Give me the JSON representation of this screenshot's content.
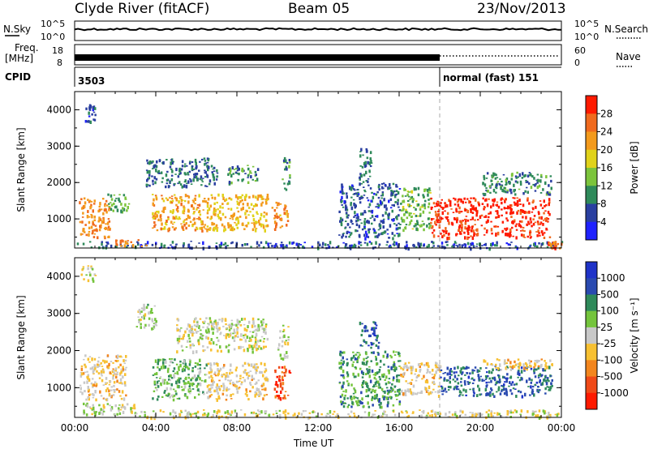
{
  "header": {
    "title": "Clyde River (fitACF)",
    "beam": "Beam 05",
    "date": "23/Nov/2013"
  },
  "top_panels": {
    "nsky_label": "N.Sky",
    "nsearch_label": "N.Search",
    "nsky_ticks": [
      "10^5",
      "10^0"
    ],
    "nsearch_ticks": [
      "10^5",
      "10^0"
    ],
    "freq_label_1": "Freq.",
    "freq_label_2": "[MHz]",
    "freq_ticks": [
      "18",
      "8"
    ],
    "nave_label": "Nave",
    "nave_ticks": [
      "60",
      "0"
    ],
    "cpid_label": "CPID",
    "cpid_values": [
      "3503",
      "normal (fast) 151"
    ],
    "cpid_change_time": "18:00"
  },
  "colors": {
    "power": [
      "#1f22ff",
      "#2a3fa0",
      "#2f8a5a",
      "#7cc43c",
      "#e0d21a",
      "#f39a1c",
      "#f06a1e",
      "#ff1a00"
    ],
    "velocity": [
      "#ff1a00",
      "#f04a18",
      "#f3861e",
      "#f7c032",
      "#c8c8c8",
      "#74c43c",
      "#2f8a5a",
      "#2a4ab0",
      "#1f33c8"
    ]
  },
  "chart_data": [
    {
      "type": "heatmap",
      "name": "power",
      "xlabel": "",
      "ylabel": "Slant Range [km]",
      "x_ticks": [
        "00:00",
        "04:00",
        "08:00",
        "12:00",
        "16:00",
        "20:00",
        "00:00"
      ],
      "y_ticks": [
        1000,
        2000,
        3000,
        4000
      ],
      "ylim": [
        200,
        4500
      ],
      "colorbar": {
        "label": "Power [dB]",
        "ticks": [
          "28",
          "24",
          "20",
          "16",
          "12",
          "8",
          "4"
        ],
        "range": [
          0,
          32
        ]
      },
      "blobs": [
        {
          "t0": 0.2,
          "t1": 1.7,
          "r0": 500,
          "r1": 1600,
          "v": 24
        },
        {
          "t0": 0.5,
          "t1": 1.0,
          "r0": 3700,
          "r1": 4200,
          "v": 6
        },
        {
          "t0": 1.6,
          "t1": 2.7,
          "r0": 1200,
          "r1": 1700,
          "v": 12
        },
        {
          "t0": 3.8,
          "t1": 6.5,
          "r0": 700,
          "r1": 1700,
          "v": 22
        },
        {
          "t0": 3.5,
          "t1": 7.0,
          "r0": 1900,
          "r1": 2700,
          "v": 8
        },
        {
          "t0": 6.5,
          "t1": 9.5,
          "r0": 700,
          "r1": 1700,
          "v": 20
        },
        {
          "t0": 7.5,
          "t1": 9.0,
          "r0": 2000,
          "r1": 2500,
          "v": 10
        },
        {
          "t0": 9.7,
          "t1": 10.5,
          "r0": 700,
          "r1": 1500,
          "v": 23
        },
        {
          "t0": 10.2,
          "t1": 10.6,
          "r0": 1800,
          "r1": 2700,
          "v": 9
        },
        {
          "t0": 13.0,
          "t1": 16.0,
          "r0": 500,
          "r1": 2000,
          "v": 7
        },
        {
          "t0": 14.0,
          "t1": 14.6,
          "r0": 2000,
          "r1": 3000,
          "v": 8
        },
        {
          "t0": 16.0,
          "t1": 17.5,
          "r0": 700,
          "r1": 1900,
          "v": 13
        },
        {
          "t0": 17.5,
          "t1": 23.4,
          "r0": 500,
          "r1": 1600,
          "v": 30
        },
        {
          "t0": 20.0,
          "t1": 23.5,
          "r0": 1700,
          "r1": 2300,
          "v": 10
        },
        {
          "t0": 0.0,
          "t1": 24.0,
          "r0": 220,
          "r1": 400,
          "v": 6
        },
        {
          "t0": 2.0,
          "t1": 3.5,
          "r0": 250,
          "r1": 450,
          "v": 24
        },
        {
          "t0": 23.3,
          "t1": 24.0,
          "r0": 220,
          "r1": 400,
          "v": 26
        }
      ]
    },
    {
      "type": "heatmap",
      "name": "velocity",
      "xlabel": "Time UT",
      "ylabel": "Slant Range [km]",
      "x_ticks": [
        "00:00",
        "04:00",
        "08:00",
        "12:00",
        "16:00",
        "20:00",
        "00:00"
      ],
      "y_ticks": [
        1000,
        2000,
        3000,
        4000
      ],
      "ylim": [
        200,
        4500
      ],
      "colorbar": {
        "label": "Velocity [m s⁻¹]",
        "ticks": [
          "1000",
          "500",
          "100",
          "25",
          "-25",
          "-100",
          "-500",
          "-1000"
        ],
        "range": [
          -1000,
          1000
        ]
      },
      "blobs": [
        {
          "t0": 0.2,
          "t1": 2.5,
          "r0": 700,
          "r1": 1900,
          "v": -150
        },
        {
          "t0": 0.3,
          "t1": 1.0,
          "r0": 3900,
          "r1": 4300,
          "v": 0
        },
        {
          "t0": 3.0,
          "t1": 4.0,
          "r0": 2600,
          "r1": 3300,
          "v": 100
        },
        {
          "t0": 3.8,
          "t1": 6.5,
          "r0": 700,
          "r1": 1800,
          "v": 250
        },
        {
          "t0": 5.0,
          "t1": 9.5,
          "r0": 2000,
          "r1": 2900,
          "v": 0
        },
        {
          "t0": 6.5,
          "t1": 9.5,
          "r0": 700,
          "r1": 1700,
          "v": -150
        },
        {
          "t0": 9.8,
          "t1": 10.6,
          "r0": 700,
          "r1": 1600,
          "v": -700
        },
        {
          "t0": 10.0,
          "t1": 10.5,
          "r0": 1800,
          "r1": 2700,
          "v": 60
        },
        {
          "t0": 13.0,
          "t1": 16.0,
          "r0": 500,
          "r1": 2000,
          "v": 400
        },
        {
          "t0": 14.0,
          "t1": 15.0,
          "r0": 2100,
          "r1": 2800,
          "v": 600
        },
        {
          "t0": 16.0,
          "t1": 18.0,
          "r0": 800,
          "r1": 1700,
          "v": -150
        },
        {
          "t0": 18.0,
          "t1": 23.5,
          "r0": 800,
          "r1": 1600,
          "v": 600
        },
        {
          "t0": 20.0,
          "t1": 23.5,
          "r0": 1500,
          "r1": 1800,
          "v": -150
        },
        {
          "t0": 0.0,
          "t1": 3.0,
          "r0": 300,
          "r1": 600,
          "v": 60
        },
        {
          "t0": 3.0,
          "t1": 24.0,
          "r0": 220,
          "r1": 420,
          "v": -20
        }
      ]
    }
  ]
}
